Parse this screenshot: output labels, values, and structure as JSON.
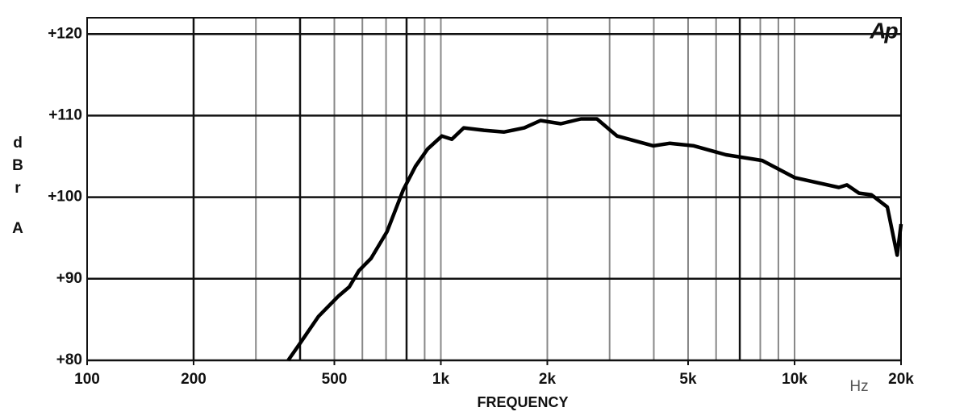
{
  "chart_data": {
    "type": "line",
    "logo": "Ap",
    "xlabel": "FREQUENCY",
    "xunit": "Hz",
    "ylabel": [
      "d",
      "B",
      "r",
      "A"
    ],
    "log_x": true,
    "grid": true,
    "color": "#000000",
    "xlim": [
      100,
      20000
    ],
    "ylim": [
      80,
      122
    ],
    "xticks": [
      100,
      200,
      500,
      {
        "value": 1000,
        "label": "1k"
      },
      {
        "value": 2000,
        "label": "2k"
      },
      {
        "value": 5000,
        "label": "5k"
      },
      {
        "value": 10000,
        "label": "10k"
      },
      {
        "value": 20000,
        "label": "20k"
      }
    ],
    "xgrid": [
      300,
      500,
      600,
      700,
      900,
      1000,
      2000,
      3000,
      4000,
      5000,
      6000,
      8000,
      9000,
      10000,
      20000
    ],
    "xgrid_bold": [
      200,
      400,
      800,
      7000
    ],
    "yticks": [
      {
        "value": 80,
        "label": "+80"
      },
      {
        "value": 90,
        "label": "+90"
      },
      {
        "value": 100,
        "label": "+100"
      },
      {
        "value": 110,
        "label": "+110"
      },
      {
        "value": 120,
        "label": "+120"
      }
    ],
    "x": [
      370,
      400,
      451,
      514,
      551,
      587,
      635,
      705,
      783,
      848,
      917,
      1007,
      1074,
      1161,
      1324,
      1510,
      1722,
      1914,
      2183,
      2488,
      2763,
      3149,
      3990,
      4432,
      5189,
      6397,
      8103,
      10000,
      13340,
      14060,
      15210,
      16480,
      18290,
      19500,
      20000
    ],
    "values": [
      80,
      82.1,
      85.4,
      87.9,
      89.0,
      91.0,
      92.5,
      95.8,
      100.9,
      103.8,
      105.9,
      107.5,
      107.1,
      108.5,
      108.2,
      108.0,
      108.5,
      109.4,
      109.0,
      109.6,
      109.6,
      107.5,
      106.3,
      106.6,
      106.3,
      105.2,
      104.5,
      102.4,
      101.2,
      101.5,
      100.5,
      100.3,
      98.8,
      92.9,
      96.7
    ]
  }
}
